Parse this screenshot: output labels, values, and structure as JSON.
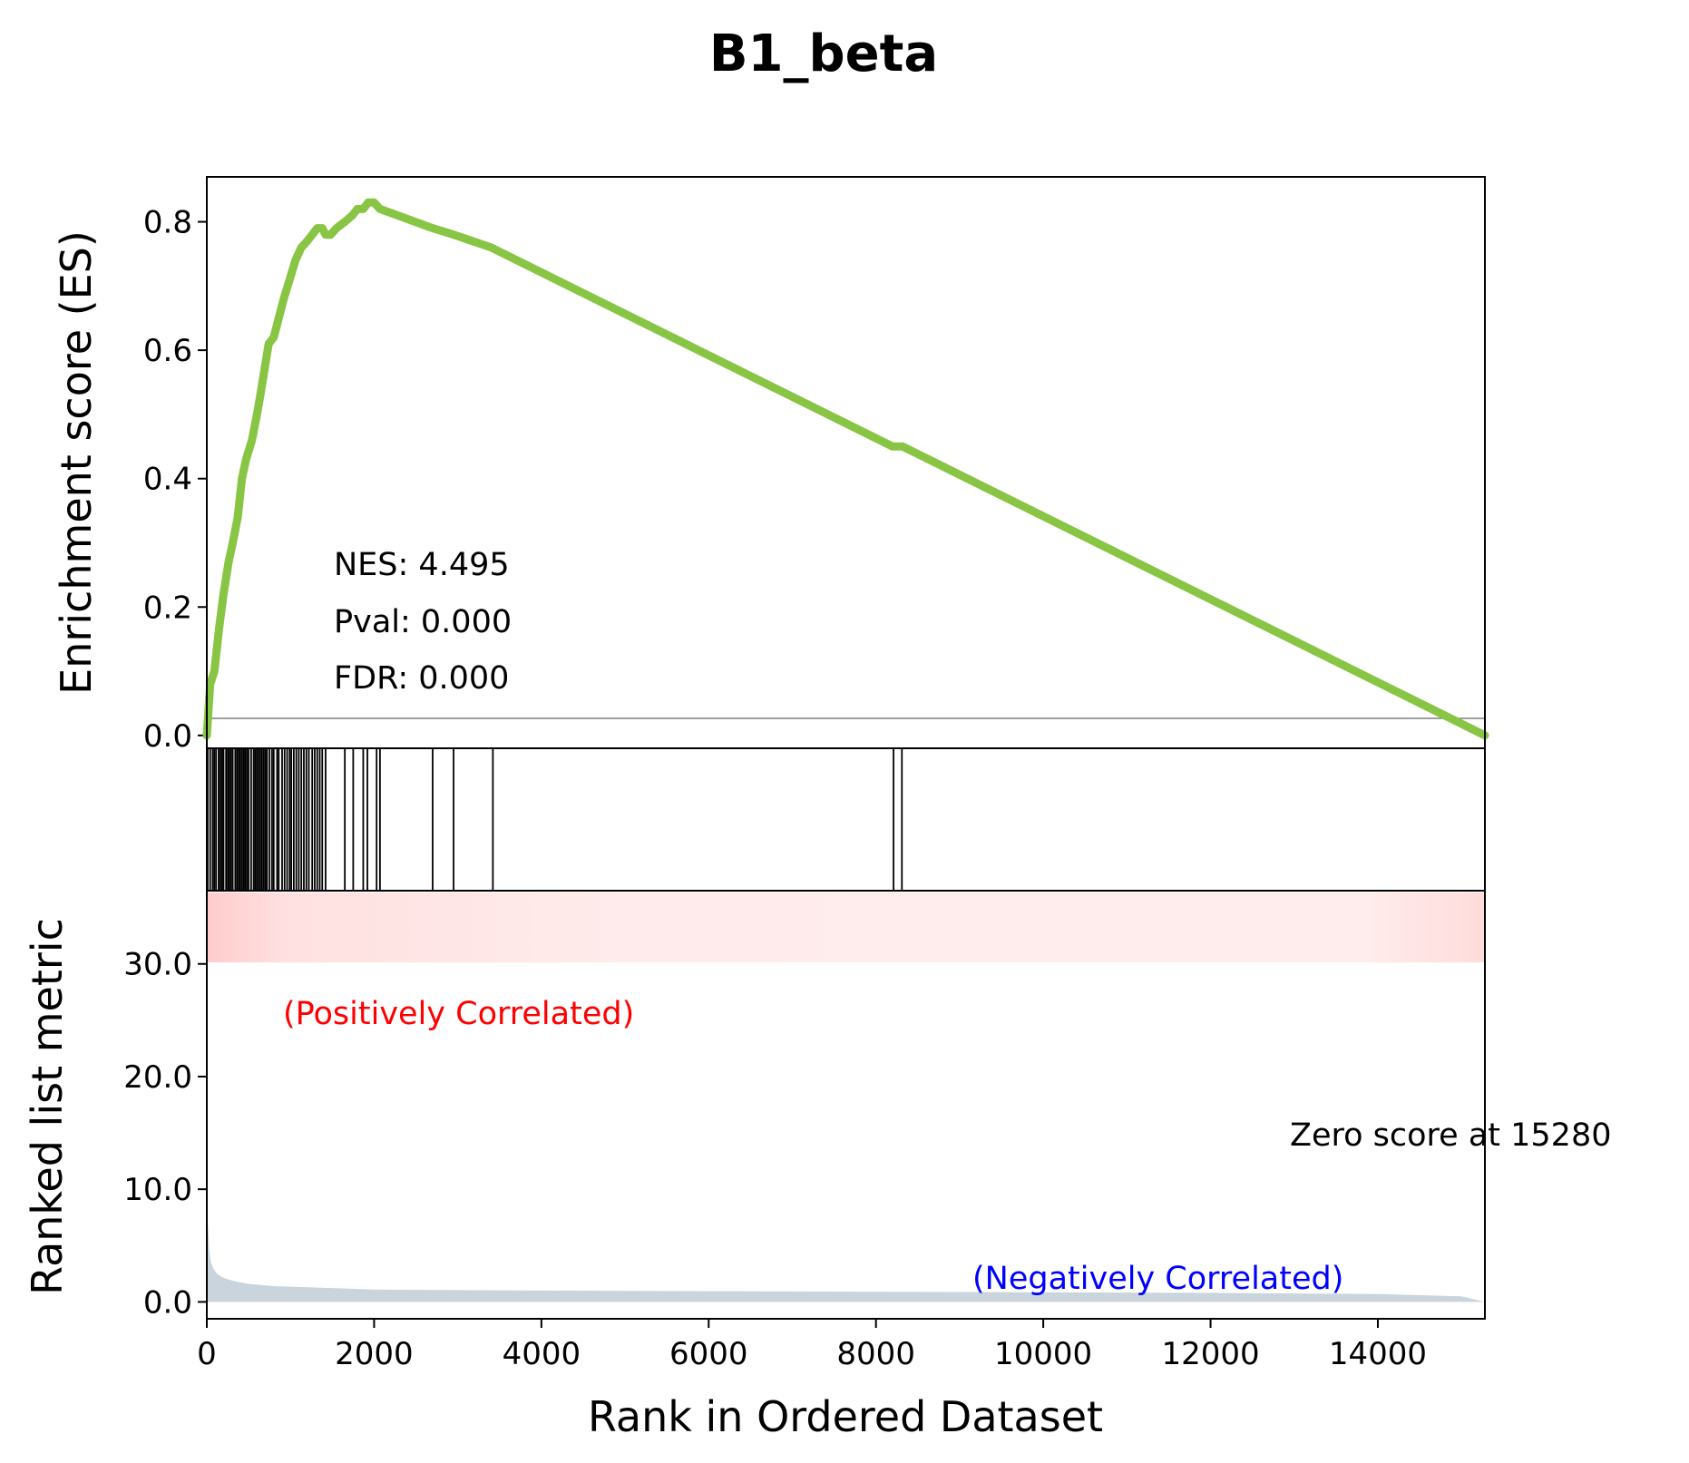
{
  "chart_data": {
    "type": "line",
    "title": "B1_beta",
    "xlabel": "Rank in Ordered Dataset",
    "xlim": [
      0,
      15280
    ],
    "x_ticks": [
      "0",
      "2000",
      "4000",
      "6000",
      "8000",
      "10000",
      "12000",
      "14000"
    ],
    "x_tick_values": [
      0,
      2000,
      4000,
      6000,
      8000,
      10000,
      12000,
      14000
    ],
    "es_panel": {
      "ylabel": "Enrichment score (ES)",
      "ylim": [
        -0.02,
        0.87
      ],
      "y_ticks": [
        "0.0",
        "0.2",
        "0.4",
        "0.6",
        "0.8"
      ],
      "y_tick_values": [
        0,
        0.2,
        0.4,
        0.6,
        0.8
      ],
      "line_color": "#88c544",
      "zero_line_color": "#808080",
      "stats": [
        "NES: 4.495",
        "Pval: 0.000",
        "FDR: 0.000"
      ],
      "es_curve": {
        "x": [
          0,
          40,
          90,
          150,
          200,
          260,
          310,
          370,
          420,
          470,
          540,
          600,
          640,
          690,
          740,
          800,
          860,
          920,
          990,
          1060,
          1130,
          1200,
          1260,
          1320,
          1380,
          1420,
          1480,
          1550,
          1650,
          1740,
          1800,
          1870,
          1930,
          2000,
          2070,
          2700,
          2950,
          3400,
          8200,
          8320,
          15280
        ],
        "y": [
          0.0,
          0.08,
          0.1,
          0.17,
          0.22,
          0.27,
          0.3,
          0.34,
          0.4,
          0.43,
          0.46,
          0.5,
          0.53,
          0.57,
          0.61,
          0.62,
          0.65,
          0.68,
          0.71,
          0.74,
          0.76,
          0.77,
          0.78,
          0.79,
          0.79,
          0.78,
          0.78,
          0.79,
          0.8,
          0.81,
          0.82,
          0.82,
          0.83,
          0.83,
          0.82,
          0.79,
          0.78,
          0.76,
          0.45,
          0.45,
          0.0
        ]
      }
    },
    "hits_panel": {
      "hit_ranks": [
        10,
        40,
        70,
        90,
        110,
        140,
        160,
        180,
        200,
        230,
        250,
        270,
        290,
        310,
        340,
        360,
        380,
        400,
        420,
        440,
        460,
        480,
        500,
        530,
        560,
        580,
        600,
        620,
        640,
        660,
        680,
        700,
        720,
        750,
        780,
        800,
        840,
        860,
        900,
        930,
        960,
        990,
        1010,
        1040,
        1070,
        1100,
        1130,
        1160,
        1190,
        1220,
        1260,
        1290,
        1320,
        1350,
        1380,
        1420,
        1650,
        1750,
        1870,
        1920,
        2030,
        2070,
        2700,
        2950,
        3420,
        8210,
        8310
      ]
    },
    "metric_panel": {
      "ylabel": "Ranked list metric",
      "ylim": [
        -1.5,
        36.5
      ],
      "y_ticks": [
        "0.0",
        "10.0",
        "20.0",
        "30.0"
      ],
      "y_tick_values": [
        0,
        10,
        20,
        30
      ],
      "fill_color": "#c9d4dd",
      "positive_label": "(Positively Correlated)",
      "positive_color": "#ff0000",
      "negative_label": "(Negatively Correlated)",
      "negative_color": "#0000ff",
      "zero_score_label": "Zero score at 15280",
      "heat_color": "#ffcccc",
      "metric_curve": {
        "x": [
          0,
          15,
          30,
          50,
          80,
          120,
          180,
          250,
          350,
          500,
          800,
          1200,
          2000,
          4000,
          8000,
          12000,
          14000,
          15000,
          15280
        ],
        "y": [
          9.0,
          6.5,
          4.5,
          3.5,
          2.9,
          2.5,
          2.2,
          2.0,
          1.8,
          1.6,
          1.4,
          1.3,
          1.1,
          1.0,
          0.9,
          0.8,
          0.7,
          0.5,
          0.0
        ]
      }
    }
  }
}
